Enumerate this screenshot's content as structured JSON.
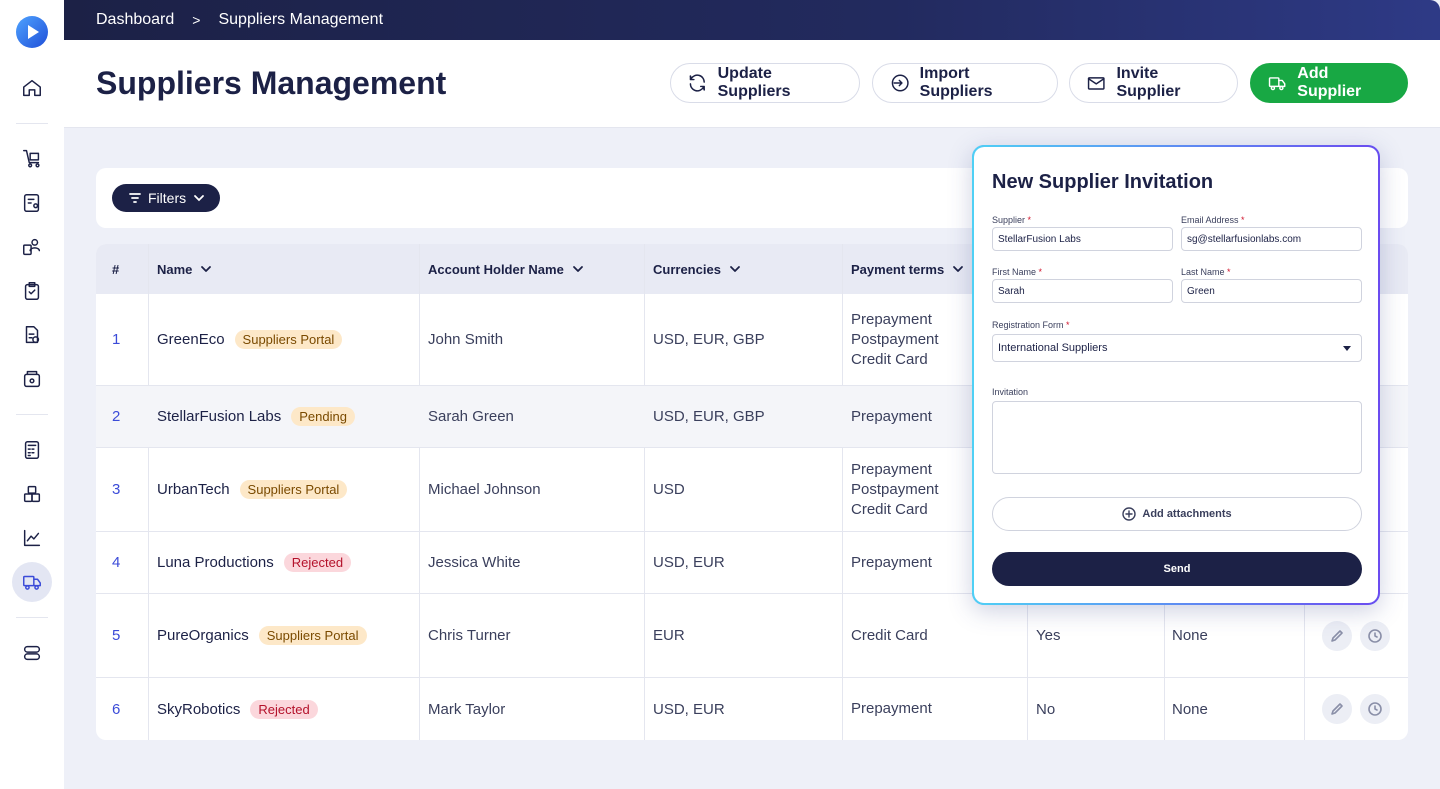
{
  "breadcrumb": {
    "root": "Dashboard",
    "separator": ">",
    "current": "Suppliers Management"
  },
  "page": {
    "title": "Suppliers Management"
  },
  "actions": {
    "update": "Update Suppliers",
    "import": "Import Suppliers",
    "invite": "Invite Supplier",
    "add": "Add Supplier"
  },
  "filters": {
    "label": "Filters"
  },
  "table": {
    "columns": [
      "#",
      "Name",
      "Account Holder Name",
      "Currencies",
      "Payment terms"
    ],
    "rows": [
      {
        "num": "1",
        "name": "GreenEco",
        "badge": "Suppliers Portal",
        "holder": "John Smith",
        "currencies": "USD, EUR, GBP",
        "terms": [
          "Prepayment",
          "Postpayment",
          "Credit Card"
        ],
        "col6": "",
        "col7": ""
      },
      {
        "num": "2",
        "name": "StellarFusion Labs",
        "badge": "Pending",
        "holder": "Sarah Green",
        "currencies": "USD, EUR, GBP",
        "terms": [
          "Prepayment"
        ],
        "col6": "",
        "col7": ""
      },
      {
        "num": "3",
        "name": "UrbanTech",
        "badge": "Suppliers Portal",
        "holder": "Michael Johnson",
        "currencies": "USD",
        "terms": [
          "Prepayment",
          "Postpayment",
          "Credit Card"
        ],
        "col6": "",
        "col7": ""
      },
      {
        "num": "4",
        "name": "Luna Productions",
        "badge": "Rejected",
        "holder": "Jessica White",
        "currencies": "USD, EUR",
        "terms": [
          "Prepayment"
        ],
        "col6": "",
        "col7": ""
      },
      {
        "num": "5",
        "name": "PureOrganics",
        "badge": "Suppliers Portal",
        "holder": "Chris Turner",
        "currencies": "EUR",
        "terms": [
          "Credit Card"
        ],
        "col6": "Yes",
        "col7": "None"
      },
      {
        "num": "6",
        "name": "SkyRobotics",
        "badge": "Rejected",
        "holder": "Mark Taylor",
        "currencies": "USD, EUR",
        "terms": [
          "Prepayment"
        ],
        "col6": "No",
        "col7": "None"
      }
    ]
  },
  "modal": {
    "title": "New Supplier Invitation",
    "supplier_label": "Supplier",
    "supplier_value": "StellarFusion Labs",
    "email_label": "Email Address",
    "email_value": "sg@stellarfusionlabs.com",
    "first_label": "First Name",
    "first_value": "Sarah",
    "last_label": "Last Name",
    "last_value": "Green",
    "form_label": "Registration Form",
    "form_value": "International Suppliers",
    "invitation_label": "Invitation",
    "attach_label": "Add attachments",
    "send_label": "Send",
    "required_mark": "*"
  },
  "colors": {
    "navy": "#1c2146",
    "green": "#18a844",
    "accent": "#3b4bd8"
  }
}
